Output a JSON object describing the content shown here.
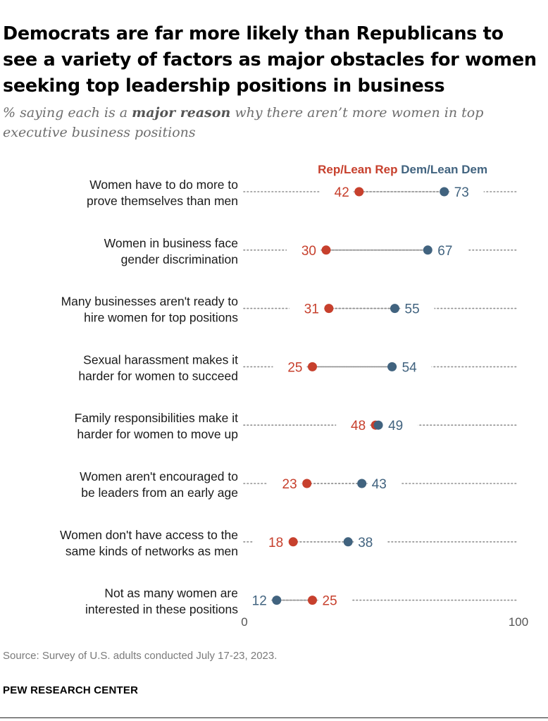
{
  "header": {
    "title": "Democrats are far more likely than Republicans to see a variety of factors as major obstacles for women seeking top leadership positions in business",
    "subtitle_before": "% saying each is a ",
    "subtitle_bold": "major reason",
    "subtitle_after": " why there aren’t more women in top executive business positions"
  },
  "footer": {
    "source": "Source: Survey of U.S. adults conducted July 17-23, 2023.",
    "branding": "PEW RESEARCH CENTER"
  },
  "chart_data": {
    "type": "scatter",
    "subtype": "dot-plot",
    "categories": [
      [
        "Women have to do more to",
        "prove themselves than men"
      ],
      [
        "Women in business face",
        "gender discrimination"
      ],
      [
        "Many businesses aren't ready to",
        "hire women for top positions"
      ],
      [
        "Sexual harassment makes it",
        "harder for women to succeed"
      ],
      [
        "Family responsibilities make it",
        "harder for women to move up"
      ],
      [
        "Women aren't encouraged to",
        "be leaders from an early age"
      ],
      [
        "Women don't have access to the",
        "same kinds of networks as men"
      ],
      [
        "Not as many women are",
        "interested in these positions"
      ]
    ],
    "series": [
      {
        "name": "Rep/Lean Rep",
        "color": "#c7402d",
        "values": [
          42,
          30,
          31,
          25,
          48,
          23,
          18,
          25
        ]
      },
      {
        "name": "Dem/Lean Dem",
        "color": "#41637f",
        "values": [
          73,
          67,
          55,
          54,
          49,
          43,
          38,
          12
        ]
      }
    ],
    "xlim": [
      0,
      100
    ],
    "x_tick_labels": [
      "0",
      "100"
    ],
    "grid": false,
    "legend": "top, above first row"
  }
}
